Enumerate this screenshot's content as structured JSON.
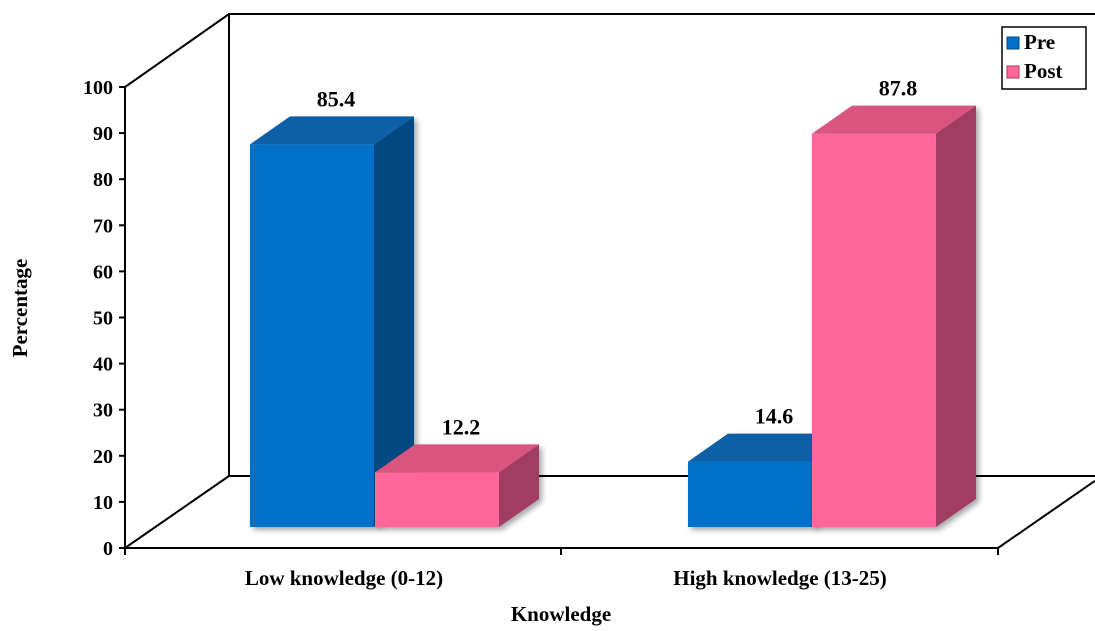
{
  "chart_data": {
    "type": "bar",
    "title": "",
    "xlabel": "Knowledge",
    "ylabel": "Percentage",
    "ylim": [
      0,
      100
    ],
    "yticks": [
      0,
      10,
      20,
      30,
      40,
      50,
      60,
      70,
      80,
      90,
      100
    ],
    "categories": [
      "Low knowledge (0-12)",
      "High knowledge (13-25)"
    ],
    "series": [
      {
        "name": "Pre",
        "values": [
          85.4,
          14.6
        ],
        "labels": [
          "85.4",
          "14.6"
        ]
      },
      {
        "name": "Post",
        "values": [
          12.2,
          87.8
        ],
        "labels": [
          "12.2",
          "87.8"
        ]
      }
    ],
    "legend": {
      "placement": "top-right",
      "entries": [
        "Pre",
        "Post"
      ]
    },
    "colors": {
      "Pre": {
        "front": "#0070C8",
        "top": "#0A5FA6",
        "side": "#004A82"
      },
      "Post": {
        "front": "#FF6699",
        "top": "#D9547F",
        "side": "#A03E60"
      }
    },
    "grid": false,
    "style": "3d"
  }
}
